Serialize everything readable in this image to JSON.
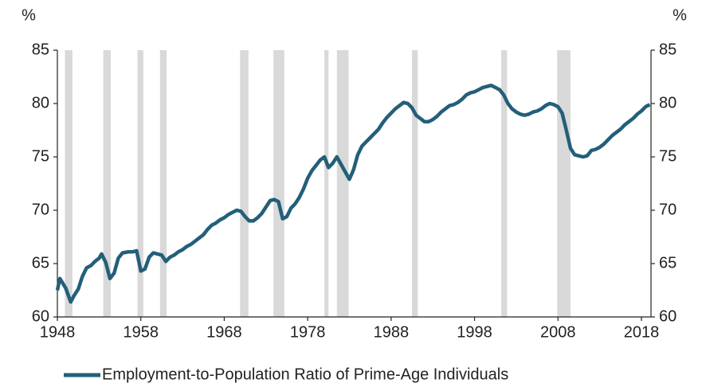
{
  "chart_data": {
    "type": "line",
    "ylabel": "%",
    "y2label": "%",
    "x": [
      1948.0,
      1948.3,
      1949.0,
      1949.6,
      1950.0,
      1950.5,
      1951.0,
      1951.5,
      1952.0,
      1952.5,
      1953.0,
      1953.3,
      1953.8,
      1954.3,
      1954.8,
      1955.3,
      1955.8,
      1956.5,
      1957.0,
      1957.5,
      1958.0,
      1958.5,
      1959.0,
      1959.5,
      1960.0,
      1960.5,
      1961.0,
      1961.5,
      1962.0,
      1962.5,
      1963.0,
      1963.5,
      1964.0,
      1964.5,
      1965.0,
      1965.5,
      1966.0,
      1966.5,
      1967.0,
      1967.5,
      1968.0,
      1968.5,
      1969.0,
      1969.5,
      1970.0,
      1970.5,
      1971.0,
      1971.5,
      1972.0,
      1972.5,
      1973.0,
      1973.5,
      1974.0,
      1974.5,
      1975.0,
      1975.5,
      1976.0,
      1976.5,
      1977.0,
      1977.5,
      1978.0,
      1978.5,
      1979.0,
      1979.5,
      1980.0,
      1980.5,
      1981.0,
      1981.5,
      1982.0,
      1982.5,
      1983.0,
      1983.5,
      1984.0,
      1984.5,
      1985.0,
      1985.5,
      1986.0,
      1986.5,
      1987.0,
      1987.5,
      1988.0,
      1988.5,
      1989.0,
      1989.5,
      1990.0,
      1990.5,
      1991.0,
      1991.5,
      1992.0,
      1992.5,
      1993.0,
      1993.5,
      1994.0,
      1994.5,
      1995.0,
      1995.5,
      1996.0,
      1996.5,
      1997.0,
      1997.5,
      1998.0,
      1998.5,
      1999.0,
      1999.5,
      2000.0,
      2000.5,
      2001.0,
      2001.5,
      2002.0,
      2002.5,
      2003.0,
      2003.5,
      2004.0,
      2004.5,
      2005.0,
      2005.5,
      2006.0,
      2006.5,
      2007.0,
      2007.5,
      2008.0,
      2008.5,
      2009.0,
      2009.5,
      2010.0,
      2010.5,
      2011.0,
      2011.5,
      2012.0,
      2012.5,
      2013.0,
      2013.5,
      2014.0,
      2014.5,
      2015.0,
      2015.5,
      2016.0,
      2016.5,
      2017.0,
      2017.5,
      2018.0,
      2018.5,
      2019.0
    ],
    "series": [
      {
        "name": "Employment-to-Population Ratio of Prime-Age Individuals",
        "color": "#235f79",
        "values": [
          62.5,
          63.6,
          62.7,
          61.4,
          62.0,
          62.6,
          63.8,
          64.6,
          64.8,
          65.2,
          65.5,
          65.9,
          65.1,
          63.6,
          64.1,
          65.5,
          66.0,
          66.1,
          66.1,
          66.2,
          64.3,
          64.5,
          65.6,
          66.0,
          65.9,
          65.8,
          65.2,
          65.6,
          65.8,
          66.1,
          66.3,
          66.6,
          66.8,
          67.1,
          67.4,
          67.7,
          68.2,
          68.6,
          68.8,
          69.1,
          69.3,
          69.6,
          69.8,
          70.0,
          69.9,
          69.4,
          69.0,
          69.0,
          69.3,
          69.7,
          70.3,
          70.9,
          71.0,
          70.8,
          69.2,
          69.4,
          70.2,
          70.6,
          71.2,
          72.0,
          73.0,
          73.7,
          74.2,
          74.7,
          75.0,
          74.0,
          74.4,
          75.0,
          74.3,
          73.6,
          72.9,
          73.8,
          75.2,
          76.0,
          76.4,
          76.8,
          77.2,
          77.6,
          78.2,
          78.7,
          79.1,
          79.5,
          79.8,
          80.1,
          80.0,
          79.6,
          78.9,
          78.6,
          78.3,
          78.3,
          78.5,
          78.8,
          79.2,
          79.5,
          79.8,
          79.9,
          80.1,
          80.4,
          80.8,
          81.0,
          81.1,
          81.3,
          81.5,
          81.6,
          81.7,
          81.5,
          81.3,
          80.8,
          80.0,
          79.5,
          79.2,
          79.0,
          78.9,
          79.0,
          79.2,
          79.3,
          79.5,
          79.8,
          80.0,
          79.9,
          79.7,
          79.1,
          77.5,
          75.8,
          75.2,
          75.1,
          75.0,
          75.1,
          75.6,
          75.7,
          75.9,
          76.2,
          76.6,
          77.0,
          77.3,
          77.6,
          78.0,
          78.3,
          78.6,
          79.0,
          79.3,
          79.7,
          79.9
        ]
      }
    ],
    "recessions": [
      [
        1948.9,
        1949.8
      ],
      [
        1953.5,
        1954.4
      ],
      [
        1957.6,
        1958.3
      ],
      [
        1960.3,
        1961.1
      ],
      [
        1969.9,
        1970.9
      ],
      [
        1973.9,
        1975.2
      ],
      [
        1980.0,
        1980.5
      ],
      [
        1981.5,
        1982.9
      ],
      [
        1990.5,
        1991.2
      ],
      [
        2001.2,
        2001.9
      ],
      [
        2007.9,
        2009.5
      ]
    ],
    "recession_color": "#d9d9d9",
    "xlim": [
      1948,
      2019.15
    ],
    "xticks": [
      1948,
      1958,
      1968,
      1978,
      1988,
      1998,
      2008,
      2018
    ],
    "ylim": [
      60,
      85
    ],
    "yticks": [
      60,
      65,
      70,
      75,
      80,
      85
    ],
    "y2lim": [
      60,
      85
    ],
    "y2ticks": [
      60,
      65,
      70,
      75,
      80,
      85
    ],
    "legend": "bottom",
    "grid": false
  }
}
